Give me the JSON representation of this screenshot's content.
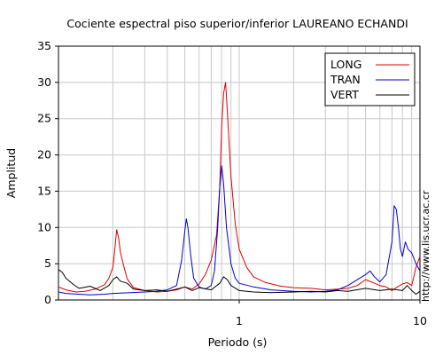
{
  "side_text": "http://www.lis.ucr.ac.cr",
  "chart_data": {
    "type": "line",
    "title": "Cociente espectral piso superior/inferior LAUREANO ECHANDI",
    "xlabel": "Periodo (s)",
    "ylabel": "Amplitud",
    "x_scale": "log",
    "xlim": [
      0.1,
      10
    ],
    "ylim": [
      0,
      35
    ],
    "x_ticks": [
      {
        "value": 1,
        "label": "1"
      },
      {
        "value": 10,
        "label": "10"
      }
    ],
    "y_ticks": [
      0,
      5,
      10,
      15,
      20,
      25,
      30,
      35
    ],
    "grid": true,
    "legend_position": "top-right",
    "series": [
      {
        "name": "LONG",
        "color": "#dd0000",
        "points": [
          [
            0.1,
            1.8
          ],
          [
            0.11,
            1.4
          ],
          [
            0.125,
            1.1
          ],
          [
            0.14,
            1.2
          ],
          [
            0.16,
            1.5
          ],
          [
            0.18,
            2.1
          ],
          [
            0.19,
            3.0
          ],
          [
            0.2,
            4.5
          ],
          [
            0.205,
            7.0
          ],
          [
            0.21,
            9.7
          ],
          [
            0.215,
            8.6
          ],
          [
            0.22,
            6.6
          ],
          [
            0.23,
            4.6
          ],
          [
            0.24,
            2.9
          ],
          [
            0.26,
            1.7
          ],
          [
            0.3,
            1.3
          ],
          [
            0.35,
            1.1
          ],
          [
            0.4,
            1.2
          ],
          [
            0.45,
            1.4
          ],
          [
            0.5,
            1.8
          ],
          [
            0.55,
            1.5
          ],
          [
            0.6,
            2.2
          ],
          [
            0.65,
            3.5
          ],
          [
            0.7,
            5.5
          ],
          [
            0.75,
            9.0
          ],
          [
            0.78,
            15.5
          ],
          [
            0.8,
            24.0
          ],
          [
            0.82,
            28.5
          ],
          [
            0.84,
            30.0
          ],
          [
            0.86,
            26.0
          ],
          [
            0.9,
            17.0
          ],
          [
            0.95,
            10.5
          ],
          [
            1.0,
            7.0
          ],
          [
            1.1,
            4.5
          ],
          [
            1.2,
            3.2
          ],
          [
            1.4,
            2.4
          ],
          [
            1.7,
            1.9
          ],
          [
            2.0,
            1.7
          ],
          [
            2.5,
            1.6
          ],
          [
            3.0,
            1.4
          ],
          [
            3.5,
            1.5
          ],
          [
            4.0,
            1.6
          ],
          [
            4.5,
            2.0
          ],
          [
            5.0,
            2.8
          ],
          [
            5.5,
            2.4
          ],
          [
            6.0,
            2.0
          ],
          [
            6.5,
            1.8
          ],
          [
            7.0,
            1.3
          ],
          [
            7.5,
            1.8
          ],
          [
            8.0,
            2.2
          ],
          [
            8.5,
            2.4
          ],
          [
            9.0,
            2.0
          ],
          [
            9.5,
            4.5
          ],
          [
            10.0,
            6.0
          ]
        ]
      },
      {
        "name": "TRAN",
        "color": "#0000cc",
        "points": [
          [
            0.1,
            1.1
          ],
          [
            0.11,
            0.9
          ],
          [
            0.13,
            0.8
          ],
          [
            0.15,
            0.7
          ],
          [
            0.18,
            0.8
          ],
          [
            0.2,
            0.9
          ],
          [
            0.25,
            1.0
          ],
          [
            0.3,
            1.1
          ],
          [
            0.35,
            1.2
          ],
          [
            0.4,
            1.4
          ],
          [
            0.45,
            2.0
          ],
          [
            0.48,
            5.5
          ],
          [
            0.5,
            9.5
          ],
          [
            0.51,
            11.2
          ],
          [
            0.52,
            10.0
          ],
          [
            0.54,
            6.0
          ],
          [
            0.56,
            3.0
          ],
          [
            0.6,
            1.8
          ],
          [
            0.65,
            1.5
          ],
          [
            0.7,
            2.0
          ],
          [
            0.73,
            4.0
          ],
          [
            0.76,
            10.0
          ],
          [
            0.78,
            15.5
          ],
          [
            0.8,
            18.5
          ],
          [
            0.82,
            16.0
          ],
          [
            0.85,
            10.0
          ],
          [
            0.9,
            5.0
          ],
          [
            0.95,
            3.0
          ],
          [
            1.0,
            2.3
          ],
          [
            1.2,
            1.8
          ],
          [
            1.5,
            1.4
          ],
          [
            2.0,
            1.2
          ],
          [
            2.5,
            1.1
          ],
          [
            3.0,
            1.2
          ],
          [
            3.5,
            1.4
          ],
          [
            4.0,
            2.0
          ],
          [
            4.5,
            2.8
          ],
          [
            5.0,
            3.5
          ],
          [
            5.3,
            4.0
          ],
          [
            5.6,
            3.2
          ],
          [
            6.0,
            2.5
          ],
          [
            6.5,
            3.5
          ],
          [
            7.0,
            8.0
          ],
          [
            7.2,
            13.0
          ],
          [
            7.4,
            12.5
          ],
          [
            7.6,
            10.0
          ],
          [
            7.8,
            7.0
          ],
          [
            8.0,
            6.0
          ],
          [
            8.3,
            8.0
          ],
          [
            8.6,
            7.0
          ],
          [
            9.0,
            6.5
          ],
          [
            9.5,
            5.0
          ],
          [
            10.0,
            4.0
          ]
        ]
      },
      {
        "name": "VERT",
        "color": "#000000",
        "points": [
          [
            0.1,
            4.2
          ],
          [
            0.105,
            3.8
          ],
          [
            0.11,
            3.0
          ],
          [
            0.12,
            2.2
          ],
          [
            0.13,
            1.6
          ],
          [
            0.15,
            1.9
          ],
          [
            0.17,
            1.3
          ],
          [
            0.19,
            2.0
          ],
          [
            0.2,
            2.8
          ],
          [
            0.21,
            3.2
          ],
          [
            0.22,
            2.6
          ],
          [
            0.24,
            2.3
          ],
          [
            0.26,
            1.5
          ],
          [
            0.3,
            1.3
          ],
          [
            0.35,
            1.4
          ],
          [
            0.4,
            1.2
          ],
          [
            0.45,
            1.5
          ],
          [
            0.5,
            1.8
          ],
          [
            0.55,
            1.3
          ],
          [
            0.6,
            1.7
          ],
          [
            0.7,
            1.4
          ],
          [
            0.78,
            2.3
          ],
          [
            0.82,
            3.2
          ],
          [
            0.86,
            2.8
          ],
          [
            0.9,
            2.0
          ],
          [
            1.0,
            1.3
          ],
          [
            1.2,
            1.1
          ],
          [
            1.5,
            1.0
          ],
          [
            2.0,
            1.1
          ],
          [
            2.5,
            1.2
          ],
          [
            3.0,
            1.1
          ],
          [
            3.5,
            1.3
          ],
          [
            4.0,
            1.2
          ],
          [
            5.0,
            1.6
          ],
          [
            6.0,
            1.3
          ],
          [
            7.0,
            1.5
          ],
          [
            8.0,
            1.3
          ],
          [
            8.5,
            2.0
          ],
          [
            9.0,
            1.3
          ],
          [
            9.5,
            0.8
          ],
          [
            10.0,
            1.2
          ]
        ]
      }
    ]
  }
}
